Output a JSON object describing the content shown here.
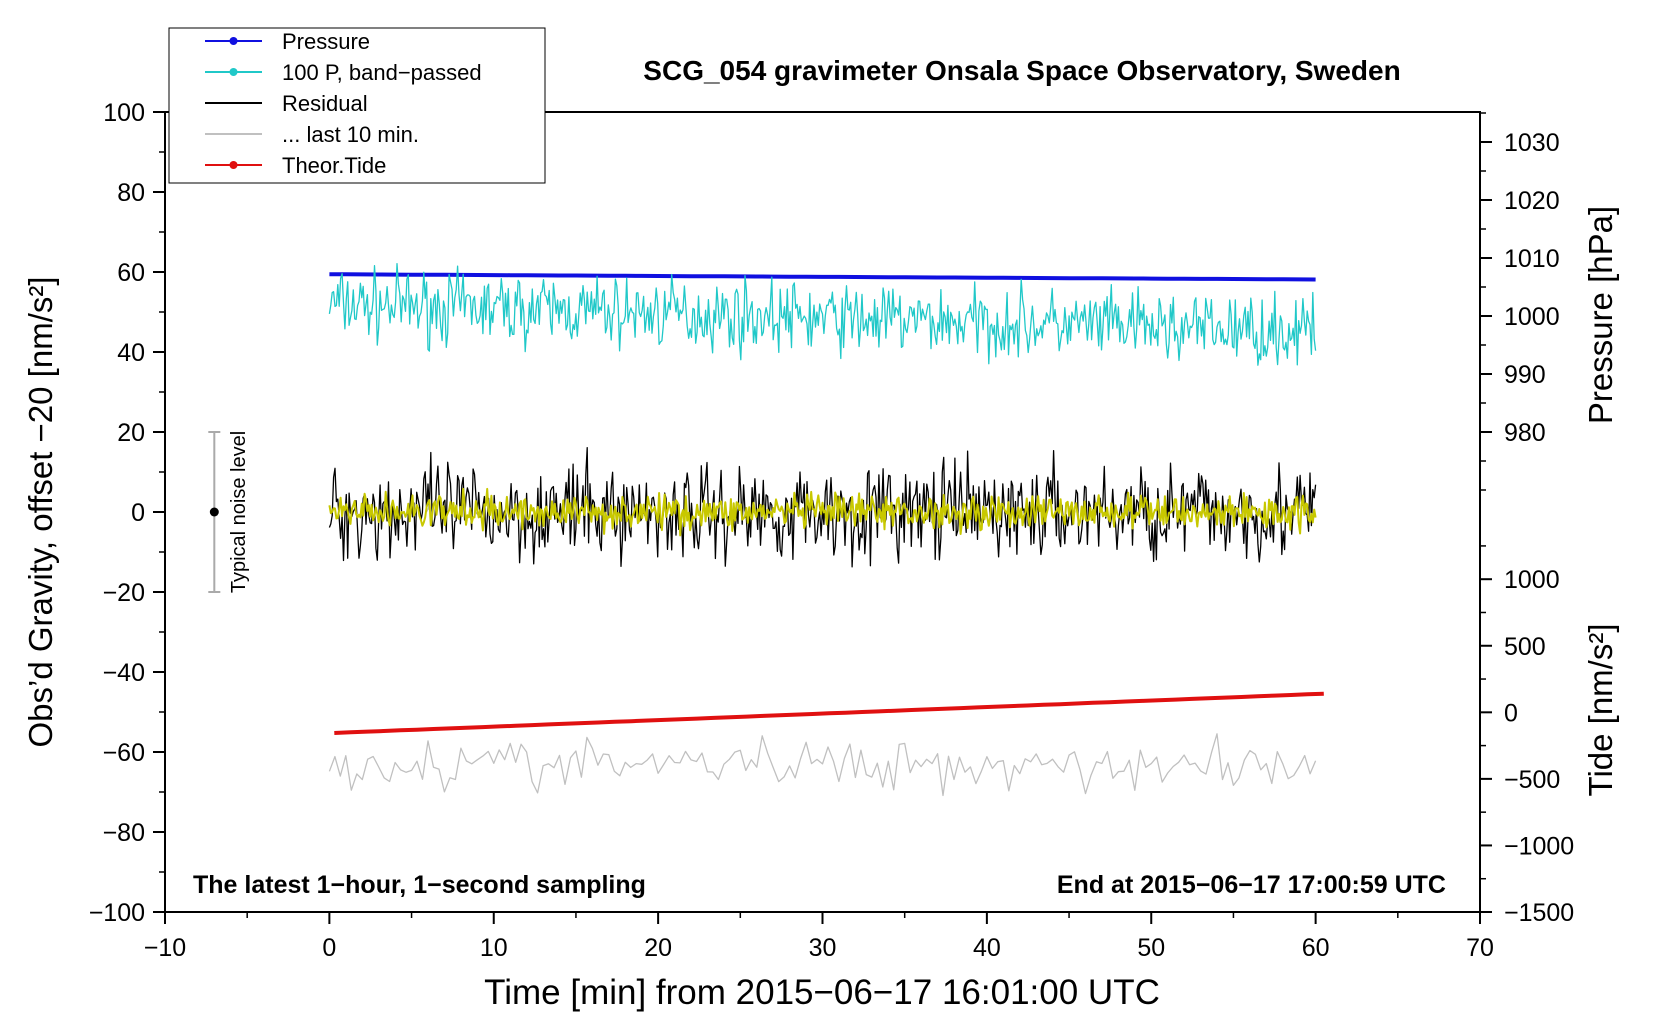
{
  "chart_data": {
    "type": "line",
    "title": "SCG_054 gravimeter Onsala Space Observatory, Sweden",
    "xlabel": "Time [min] from 2015−06−17 16:01:00 UTC",
    "ylabel_left": "Obs’d Gravity, offset −20 [nm/s²]",
    "ylabel_right_top": "Pressure [hPa]",
    "ylabel_right_bottom": "Tide [nm/s²]",
    "xlim": [
      -10,
      70
    ],
    "ylim_left": [
      -100,
      100
    ],
    "x_ticks": [
      -10,
      0,
      10,
      20,
      30,
      40,
      50,
      60,
      70
    ],
    "x_tick_labels": [
      "−10",
      "0",
      "10",
      "20",
      "30",
      "40",
      "50",
      "60",
      "70"
    ],
    "y_left_ticks": [
      -100,
      -80,
      -60,
      -40,
      -20,
      0,
      20,
      40,
      60,
      80,
      100
    ],
    "y_left_tick_labels": [
      "−100",
      "−80",
      "−60",
      "−40",
      "−20",
      "0",
      "20",
      "40",
      "60",
      "80",
      "100"
    ],
    "pressure_axis": {
      "ticks": [
        980,
        990,
        1000,
        1010,
        1020,
        1030
      ],
      "tick_labels": [
        "980",
        "990",
        "1000",
        "1010",
        "1020",
        "1030"
      ],
      "calibration": {
        "value_a": 980,
        "left_a": 20,
        "value_b": 1030,
        "left_b": 92.5
      }
    },
    "tide_axis": {
      "ticks": [
        -1500,
        -1000,
        -500,
        0,
        500,
        1000
      ],
      "tick_labels": [
        "−1500",
        "−1000",
        "−500",
        "0",
        "500",
        "1000"
      ],
      "calibration": {
        "value_a": -1500,
        "left_a": -100,
        "value_b": 1000,
        "left_b": -16.8
      }
    },
    "legend": {
      "position": "top-left",
      "entries": [
        {
          "label": "Pressure",
          "color": "#1010e0",
          "marker": true
        },
        {
          "label": "100 P, band−passed",
          "color": "#20c8c8",
          "marker": true
        },
        {
          "label": "Residual",
          "color": "#000000",
          "marker": false
        },
        {
          "label": "... last 10 min.",
          "color": "#c0c0c0",
          "marker": false
        },
        {
          "label": "Theor.Tide",
          "color": "#e01010",
          "marker": true
        }
      ]
    },
    "noise_bar": {
      "label": "Typical noise level",
      "x": -7,
      "center": 0,
      "low": -20,
      "high": 20
    },
    "annotations": {
      "bottom_left": "The latest 1−hour, 1−second sampling",
      "bottom_right": "End at 2015−06−17 17:00:59 UTC"
    },
    "series": [
      {
        "name": "Pressure",
        "color": "#1010e0",
        "kind": "line",
        "x_start": 0,
        "x_end": 60,
        "start": 1007.2,
        "end": 1006.3,
        "units": "hPa"
      },
      {
        "name": "100 P, band−passed",
        "color": "#20c8c8",
        "kind": "noise",
        "x_start": 0,
        "x_end": 60,
        "center_start": 52,
        "center_end": 45,
        "amplitude": 8,
        "units": "nm/s²"
      },
      {
        "name": "Residual",
        "color": "#000000",
        "kind": "noise",
        "x_start": 0,
        "x_end": 60,
        "center_start": 0,
        "center_end": 0,
        "amplitude": 11,
        "units": "nm/s²"
      },
      {
        "name": "Residual (smoothed)",
        "color": "#c8c800",
        "kind": "noise",
        "x_start": 0,
        "x_end": 60,
        "center_start": 0,
        "center_end": 0,
        "amplitude": 4,
        "units": "nm/s²"
      },
      {
        "name": "... last 10 min.",
        "color": "#c0c0c0",
        "kind": "noise",
        "x_start": 0,
        "x_end": 60,
        "center_start": -63,
        "center_end": -63,
        "amplitude": 6,
        "units": "nm/s²"
      },
      {
        "name": "Theor.Tide",
        "color": "#e01010",
        "kind": "line",
        "x_start": 0.3,
        "x_end": 60.5,
        "start": -155,
        "end": 140,
        "units": "nm/s²"
      }
    ]
  }
}
